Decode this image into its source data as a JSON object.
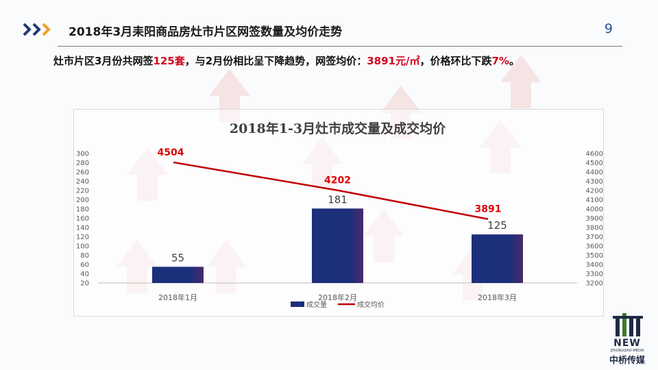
{
  "header": {
    "title": "2018年3月耒阳商品房灶市片区网签数量及均价走势",
    "page_number": "9"
  },
  "summary": {
    "part1": "灶市片区3月份共网签",
    "hl1": "125套",
    "part2": "，与2月份相比呈下降趋势，网签均价：",
    "hl2": "3891元/㎡",
    "part3": "，价格环比下跌",
    "hl3": "7%",
    "part4": "。"
  },
  "logo": {
    "new_text": "NEW",
    "sub_text": "ZHONGQIAO MEDIA",
    "cn_text": "中桥传媒"
  },
  "colors": {
    "bar": "#1c2f7a",
    "line": "#c00000",
    "price_label": "#e00000",
    "accent_arrow_dark": "#1f3a6e",
    "accent_arrow_light": "#f0a020"
  },
  "chart_data": {
    "type": "bar+line",
    "title": "2018年1-3月灶市成交量及成交均价",
    "categories": [
      "2018年1月",
      "2018年2月",
      "2018年3月"
    ],
    "series": [
      {
        "name": "成交量",
        "type": "bar",
        "axis": "left",
        "values": [
          55,
          181,
          125
        ]
      },
      {
        "name": "成交均价",
        "type": "line",
        "axis": "right",
        "values": [
          4504,
          4202,
          3891
        ]
      }
    ],
    "y_left": {
      "min": 20,
      "max": 300,
      "step": 20
    },
    "y_right": {
      "min": 3200,
      "max": 4600,
      "step": 100
    },
    "legend": "bottom-center",
    "grid": false
  }
}
